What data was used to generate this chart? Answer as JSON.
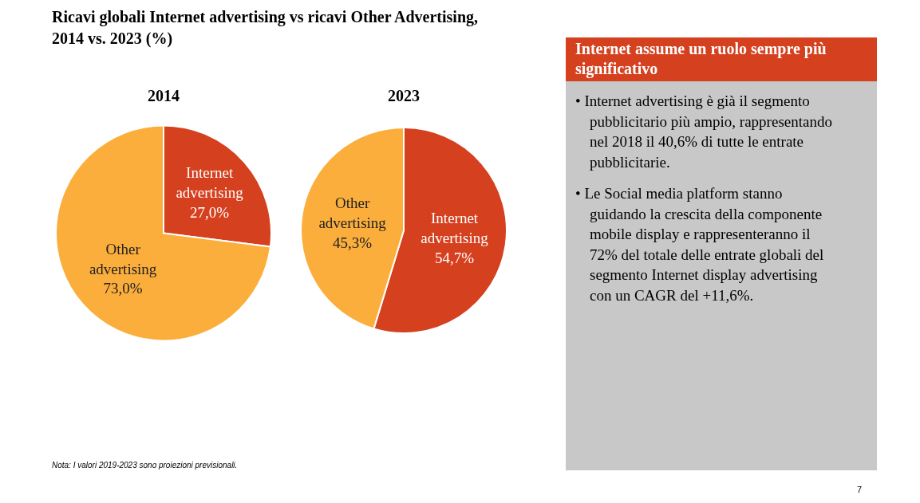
{
  "chart_data": [
    {
      "type": "other",
      "title": "Ricavi globali Internet advertising vs ricavi Other Advertising,\n2014 vs. 2023 (%)",
      "annotations": [
        "Nota: I valori 2019-2023 sono proiezioni previsionali.",
        "7"
      ]
    },
    {
      "type": "pie",
      "title": "2014",
      "categories": [
        "Internet advertising",
        "Other advertising"
      ],
      "values": [
        27.0,
        73.0
      ],
      "colors": [
        "#d5401f",
        "#fbae3c"
      ],
      "value_labels": [
        "27,0%",
        "73,0%"
      ],
      "legend": false
    },
    {
      "type": "pie",
      "title": "2023",
      "categories": [
        "Internet advertising",
        "Other advertising"
      ],
      "values": [
        54.7,
        45.3
      ],
      "colors": [
        "#d5401f",
        "#fbae3c"
      ],
      "value_labels": [
        "54,7%",
        "45,3%"
      ],
      "legend": false
    },
    {
      "type": "other",
      "title": "Internet assume un ruolo sempre più significativo",
      "annotations": [
        "• Internet advertising è già il segmento pubblicitario più ampio, rappresentando nel 2018 il 40,6% di tutte le entrate pubblicitarie.",
        "• Le Social media platform stanno guidando la crescita della componente mobile display e rappresenteranno il 72% del totale delle entrate globali del segmento Internet display advertising con un CAGR del +11,6%."
      ]
    }
  ]
}
